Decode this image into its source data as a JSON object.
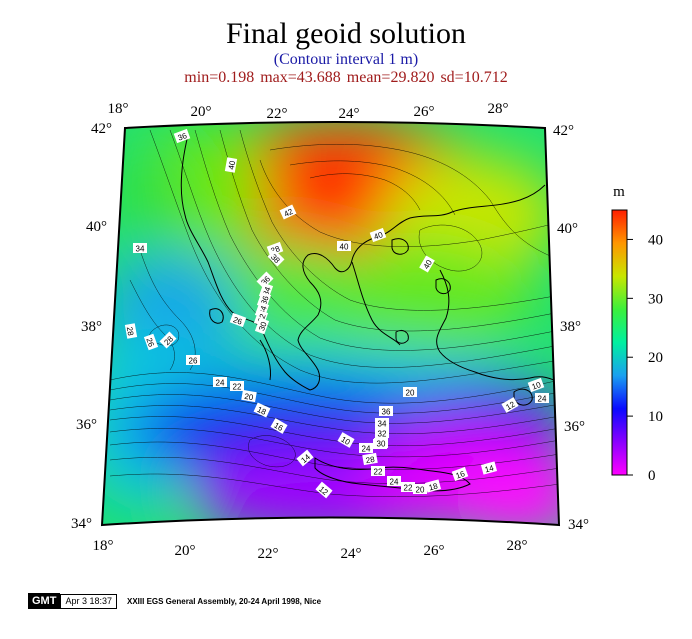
{
  "title": "Final geoid solution",
  "subtitle": "(Contour interval 1 m)",
  "stats": "min=0.198  max=43.688  mean=29.820  sd=10.712",
  "colorbar": {
    "unit": "m",
    "ticks": [
      "0",
      "10",
      "20",
      "30",
      "40"
    ],
    "stops": [
      "#ff00ff",
      "#8a00ff",
      "#0a0aff",
      "#1aa0f0",
      "#00f0a0",
      "#3cf03c",
      "#c8e600",
      "#ff9600",
      "#ff1e00"
    ]
  },
  "axes": {
    "top_lon": [
      "18°",
      "20°",
      "22°",
      "24°",
      "26°",
      "28°"
    ],
    "bottom_lon": [
      "18°",
      "20°",
      "22°",
      "24°",
      "26°",
      "28°"
    ],
    "left_lat": [
      "42°",
      "40°",
      "38°",
      "36°",
      "34°"
    ],
    "right_lat": [
      "42°",
      "40°",
      "38°",
      "36°",
      "34°"
    ]
  },
  "contour_labels": [
    "36",
    "40",
    "42",
    "38",
    "40",
    "40",
    "40",
    "34",
    "38",
    "36",
    "34",
    "36",
    "34",
    "32",
    "30",
    "28",
    "26",
    "28",
    "26",
    "26",
    "24",
    "22",
    "20",
    "18",
    "16",
    "14",
    "12",
    "10",
    "24",
    "22",
    "20",
    "36",
    "34",
    "32",
    "30",
    "28",
    "26",
    "24",
    "22",
    "20",
    "18",
    "16",
    "14",
    "12",
    "10",
    "24",
    "26",
    "22"
  ],
  "footer": {
    "logo": "GMT",
    "date": "Apr  3 18:37",
    "text": "XXIII EGS General Assembly, 20-24 April 1998, Nice"
  }
}
